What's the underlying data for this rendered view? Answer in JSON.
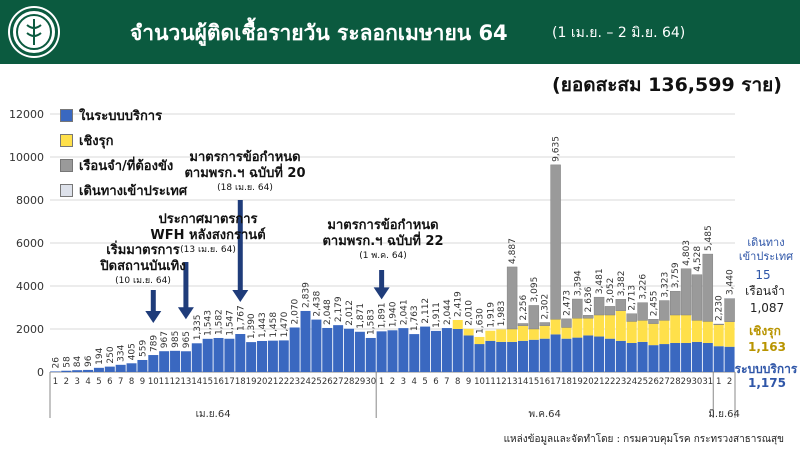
{
  "header": {
    "title": "จำนวนผู้ติดเชื้อรายวัน ระลอกเมษายน 64",
    "range": "(1 เม.ย. – 2 มิ.ย. 64)"
  },
  "cumulative_text": "(ยอดสะสม 136,599 ราย)",
  "source_text": "แหล่งข้อมูลและจัดทำโดย : กรมควบคุมโรค กระทรวงสาธารณสุข",
  "colors": {
    "header_bg": "#0b5a3f",
    "system": "#3a68c0",
    "proactive": "#ffe04a",
    "prison": "#9a9a9a",
    "travel": "#dde1ea"
  },
  "annotations": [
    {
      "big": "เริ่มมาตรการ",
      "big2": "ปิดสถานบันเทิง",
      "small": "(10 เม.ย. 64)"
    },
    {
      "big": "ประกาศมาตรการ",
      "big2": "WFH หลังสงกรานต์",
      "small": "(13 เม.ย. 64)"
    },
    {
      "big": "มาตรการข้อกำหนด",
      "big2": "ตามพรก.ฯ ฉบับที่ 20",
      "small": "(18 เม.ย. 64)"
    },
    {
      "big": "มาตรการข้อกำหนด",
      "big2": "ตามพรก.ฯ ฉบับที่ 22",
      "small": "(1 พ.ค. 64)"
    }
  ],
  "right_labels": {
    "travel_title": "เดินทาง\nเข้าประเทศ",
    "travel_value": "15",
    "prison_title": "เรือนจำ",
    "prison_value": "1,087",
    "proactive_title": "เชิงรุก",
    "proactive_value": "1,163",
    "system_title": "ระบบบริการ",
    "system_value": "1,175"
  },
  "chart_data": {
    "type": "bar",
    "stacked": true,
    "ylim": [
      0,
      12000
    ],
    "yticks": [
      0,
      2000,
      4000,
      6000,
      8000,
      10000,
      12000
    ],
    "grid": true,
    "legend": "top-left",
    "month_labels": [
      "เม.ย.64",
      "พ.ค.64",
      "มิ.ย.64"
    ],
    "categories": [
      "1",
      "2",
      "3",
      "4",
      "5",
      "6",
      "7",
      "8",
      "9",
      "10",
      "11",
      "12",
      "13",
      "14",
      "15",
      "16",
      "17",
      "18",
      "19",
      "20",
      "21",
      "22",
      "23",
      "24",
      "25",
      "26",
      "27",
      "28",
      "29",
      "30",
      "1",
      "2",
      "3",
      "4",
      "5",
      "6",
      "7",
      "8",
      "9",
      "10",
      "11",
      "12",
      "13",
      "14",
      "15",
      "16",
      "17",
      "18",
      "19",
      "20",
      "21",
      "22",
      "23",
      "24",
      "25",
      "26",
      "27",
      "28",
      "29",
      "30",
      "31",
      "1",
      "2"
    ],
    "totals": [
      26,
      58,
      84,
      96,
      194,
      250,
      334,
      405,
      559,
      789,
      967,
      985,
      965,
      1335,
      1543,
      1582,
      1547,
      1767,
      1390,
      1443,
      1458,
      1470,
      2070,
      2839,
      2438,
      2048,
      2179,
      2012,
      1871,
      1583,
      1891,
      1940,
      2041,
      1763,
      2112,
      1911,
      2044,
      2419,
      2010,
      1630,
      1919,
      1983,
      4887,
      2256,
      3095,
      2302,
      9635,
      2473,
      3394,
      2636,
      3481,
      3052,
      3382,
      2713,
      3226,
      2455,
      3323,
      3759,
      4803,
      4528,
      5485,
      2230,
      3440
    ],
    "series": [
      {
        "name": "ในระบบบริการ",
        "values": [
          26,
          58,
          84,
          96,
          194,
          250,
          334,
          405,
          559,
          789,
          967,
          985,
          965,
          1335,
          1543,
          1582,
          1547,
          1767,
          1390,
          1443,
          1458,
          1470,
          2070,
          2839,
          2438,
          2048,
          2179,
          2012,
          1871,
          1583,
          1891,
          1940,
          2041,
          1763,
          2112,
          1911,
          2044,
          2000,
          1700,
          1300,
          1450,
          1400,
          1400,
          1450,
          1500,
          1550,
          1750,
          1550,
          1600,
          1700,
          1650,
          1550,
          1450,
          1350,
          1400,
          1250,
          1300,
          1350,
          1350,
          1400,
          1350,
          1200,
          1175
        ]
      },
      {
        "name": "เชิงรุก",
        "values": [
          0,
          0,
          0,
          0,
          0,
          0,
          0,
          0,
          0,
          0,
          0,
          0,
          0,
          0,
          0,
          0,
          0,
          0,
          0,
          0,
          0,
          0,
          0,
          0,
          0,
          0,
          0,
          0,
          0,
          0,
          0,
          0,
          0,
          0,
          0,
          0,
          0,
          419,
          310,
          330,
          469,
          583,
          600,
          700,
          500,
          600,
          700,
          520,
          900,
          800,
          1000,
          1100,
          1400,
          1000,
          1000,
          1000,
          1100,
          1300,
          1300,
          1000,
          1000,
          1000,
          1163
        ]
      },
      {
        "name": "เรือนจำ/ที่ต้องขัง",
        "values": [
          0,
          0,
          0,
          0,
          0,
          0,
          0,
          0,
          0,
          0,
          0,
          0,
          0,
          0,
          0,
          0,
          0,
          0,
          0,
          0,
          0,
          0,
          0,
          0,
          0,
          0,
          0,
          0,
          0,
          0,
          0,
          0,
          0,
          0,
          0,
          0,
          0,
          0,
          0,
          0,
          0,
          0,
          2887,
          106,
          1095,
          152,
          7185,
          403,
          894,
          136,
          831,
          402,
          532,
          363,
          826,
          205,
          923,
          1109,
          2153,
          2128,
          3135,
          30,
          1087
        ]
      },
      {
        "name": "เดินทางเข้าประเทศ",
        "values": [
          0,
          0,
          0,
          0,
          0,
          0,
          0,
          0,
          0,
          0,
          0,
          0,
          0,
          0,
          0,
          0,
          0,
          0,
          0,
          0,
          0,
          0,
          0,
          0,
          0,
          0,
          0,
          0,
          0,
          0,
          0,
          0,
          0,
          0,
          0,
          0,
          0,
          0,
          0,
          0,
          0,
          0,
          0,
          0,
          0,
          0,
          0,
          0,
          0,
          0,
          0,
          0,
          0,
          0,
          0,
          0,
          0,
          0,
          0,
          0,
          0,
          0,
          15
        ]
      }
    ]
  }
}
